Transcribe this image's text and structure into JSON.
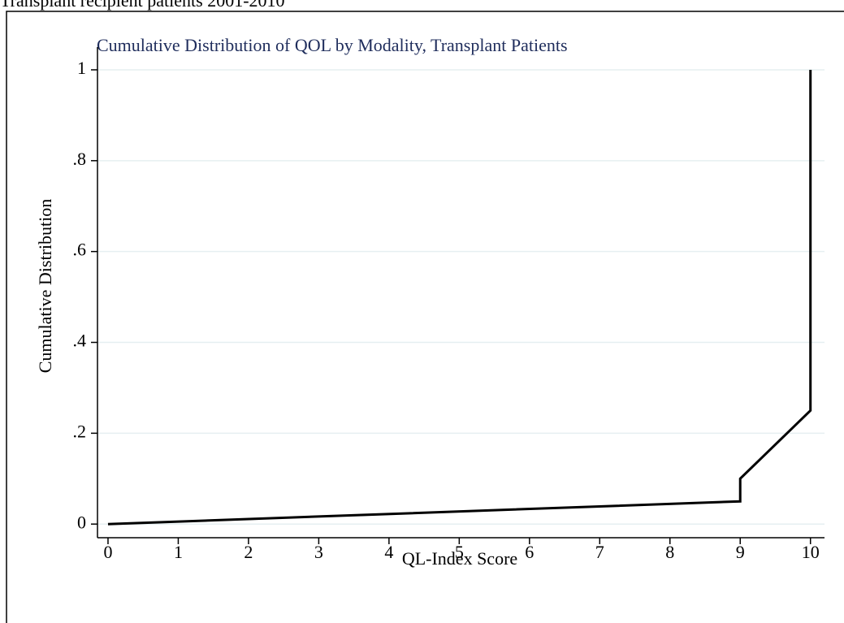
{
  "heading": "Transplant recipient patients 2001-2010",
  "chart_data": {
    "type": "line",
    "title": "Cumulative Distribution of QOL by Modality, Transplant Patients",
    "x_label": "QL-Index Score",
    "y_label": "Cumulative Distribution",
    "x": [
      0,
      9,
      9,
      10,
      10
    ],
    "values": [
      0,
      0.05,
      0.1,
      0.25,
      1
    ],
    "color": "#000000",
    "xlim": [
      -0.15,
      10.2
    ],
    "ylim": [
      -0.03,
      1.05
    ],
    "xticks": [
      0,
      1,
      2,
      3,
      4,
      5,
      6,
      7,
      8,
      9,
      10
    ],
    "yticks": [
      0,
      {
        "value": 0.2,
        "label": ".2"
      },
      {
        "value": 0.4,
        "label": ".4"
      },
      {
        "value": 0.6,
        "label": ".6"
      },
      {
        "value": 0.8,
        "label": ".8"
      },
      1
    ],
    "grid": true
  }
}
